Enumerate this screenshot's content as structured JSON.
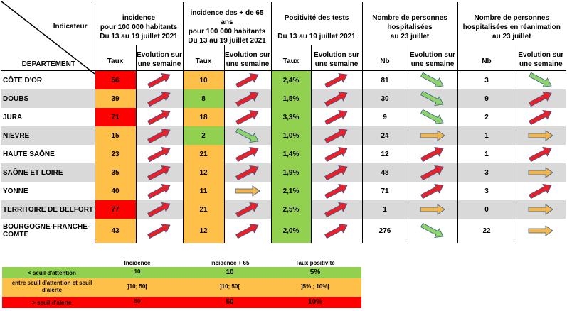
{
  "header": {
    "indicateur": "Indicateur",
    "departement": "DEPARTEMENT",
    "groups": [
      {
        "l1": "incidence",
        "l2": "pour 100 000 habitants",
        "l3": "Du 13 au 19 juillet  2021"
      },
      {
        "l1": "incidence des + de 65 ans",
        "l2": "pour 100 000 habitants",
        "l3": "Du 13 au 19 juillet 2021"
      },
      {
        "l1": "Positivité des tests",
        "l2": "",
        "l3": "Du 13 au 19 juillet 2021"
      },
      {
        "l1": "Nombre de personnes",
        "l2": "hospitalisées",
        "l3": "au 23 juillet"
      },
      {
        "l1": "Nombre de personnes",
        "l2": "hospitalisées en réanimation",
        "l3": "au 23 juillet"
      }
    ],
    "sub": {
      "taux": "Taux",
      "nb": "Nb",
      "evo1": "Evolution sur",
      "evo2": "une semaine"
    }
  },
  "rows": [
    {
      "dept": "CÔTE D'OR",
      "inc": "56",
      "inc_color": "red",
      "inc_evo": "up",
      "inc65": "10",
      "inc65_color": "orange",
      "inc65_evo": "up",
      "pos": "2,4%",
      "pos_evo": "up",
      "hosp": "81",
      "hosp_evo": "down",
      "rea": "3",
      "rea_evo": "down"
    },
    {
      "dept": "DOUBS",
      "inc": "39",
      "inc_color": "orange",
      "inc_evo": "up",
      "inc65": "8",
      "inc65_color": "green",
      "inc65_evo": "up",
      "pos": "1,5%",
      "pos_evo": "up",
      "hosp": "30",
      "hosp_evo": "down",
      "rea": "9",
      "rea_evo": "up"
    },
    {
      "dept": "JURA",
      "inc": "71",
      "inc_color": "red",
      "inc_evo": "up",
      "inc65": "18",
      "inc65_color": "orange",
      "inc65_evo": "up",
      "pos": "3,3%",
      "pos_evo": "up",
      "hosp": "9",
      "hosp_evo": "down",
      "rea": "2",
      "rea_evo": "up"
    },
    {
      "dept": "NIEVRE",
      "inc": "15",
      "inc_color": "orange",
      "inc_evo": "up",
      "inc65": "2",
      "inc65_color": "green",
      "inc65_evo": "down",
      "pos": "1,0%",
      "pos_evo": "up",
      "hosp": "24",
      "hosp_evo": "flat",
      "rea": "1",
      "rea_evo": "flat"
    },
    {
      "dept": "HAUTE SAÔNE",
      "inc": "23",
      "inc_color": "orange",
      "inc_evo": "up",
      "inc65": "21",
      "inc65_color": "orange",
      "inc65_evo": "up",
      "pos": "1,4%",
      "pos_evo": "up",
      "hosp": "12",
      "hosp_evo": "up",
      "rea": "1",
      "rea_evo": "up"
    },
    {
      "dept": "SAÔNE ET LOIRE",
      "inc": "35",
      "inc_color": "orange",
      "inc_evo": "up",
      "inc65": "12",
      "inc65_color": "orange",
      "inc65_evo": "up",
      "pos": "1,9%",
      "pos_evo": "up",
      "hosp": "48",
      "hosp_evo": "up",
      "rea": "3",
      "rea_evo": "flat"
    },
    {
      "dept": "YONNE",
      "inc": "40",
      "inc_color": "orange",
      "inc_evo": "up",
      "inc65": "11",
      "inc65_color": "orange",
      "inc65_evo": "flat",
      "pos": "2,1%",
      "pos_evo": "up",
      "hosp": "71",
      "hosp_evo": "up",
      "rea": "3",
      "rea_evo": "up"
    },
    {
      "dept": "TERRITOIRE DE BELFORT",
      "inc": "77",
      "inc_color": "red",
      "inc_evo": "up",
      "inc65": "21",
      "inc65_color": "orange",
      "inc65_evo": "up",
      "pos": "2,5%",
      "pos_evo": "up",
      "hosp": "1",
      "hosp_evo": "flat",
      "rea": "0",
      "rea_evo": "flat"
    },
    {
      "dept": "BOURGOGNE-FRANCHE-",
      "dept2": "COMTE",
      "inc": "43",
      "inc_color": "orange",
      "inc_evo": "up",
      "inc65": "12",
      "inc65_color": "orange",
      "inc65_evo": "up",
      "pos": "2,0%",
      "pos_evo": "up",
      "hosp": "276",
      "hosp_evo": "down",
      "rea": "22",
      "rea_evo": "flat"
    }
  ],
  "legend": {
    "headers": [
      "Incidence",
      "Incidence + 65",
      "Taux positivité"
    ],
    "rows": [
      {
        "label": "< seuil d'attention",
        "color": "#92d050",
        "vals": [
          "10",
          "10",
          "5%"
        ]
      },
      {
        "label": "entre seuil d'attention et seuil",
        "label2": "d'alerte",
        "color": "#ffc04a",
        "vals": [
          "]10; 50[",
          "]10; 50[",
          "]5% ; 10%["
        ]
      },
      {
        "label": "> seuil d'alerte",
        "color": "#ff0000",
        "vals": [
          "50",
          "50",
          "10%"
        ]
      }
    ]
  },
  "colors": {
    "red": "#ff0000",
    "orange": "#ffc04a",
    "green": "#92d050",
    "grey": "#d9d9d9",
    "arrow_up": "#e8202a",
    "arrow_down": "#8ed36b",
    "arrow_flat": "#f2b64a"
  }
}
